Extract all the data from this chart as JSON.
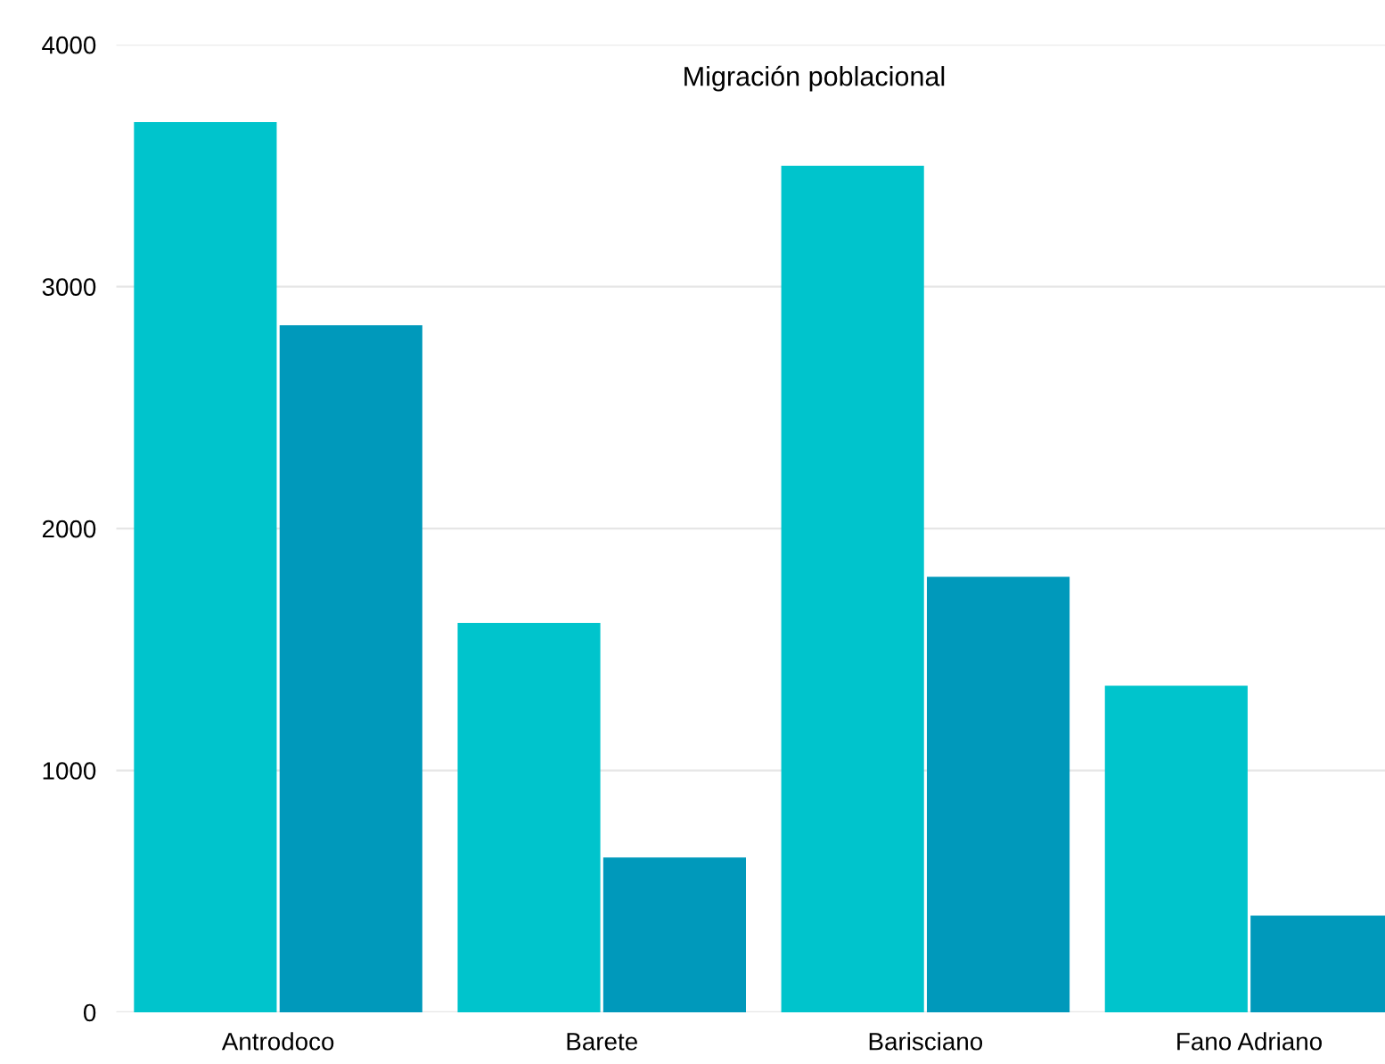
{
  "chart_data": {
    "type": "bar",
    "title": "Migración poblacional",
    "categories": [
      "Antrodoco",
      "Barete",
      "Barisciano",
      "Fano Adriano"
    ],
    "series": [
      {
        "color": "#00c4cc",
        "values": [
          3680,
          1610,
          3500,
          1350
        ]
      },
      {
        "color": "#0099bb",
        "values": [
          2840,
          640,
          1800,
          400
        ]
      }
    ],
    "ylim": [
      0,
      4000
    ],
    "yticks": [
      0,
      1000,
      2000,
      3000,
      4000
    ],
    "grid": "y",
    "legend": false
  }
}
